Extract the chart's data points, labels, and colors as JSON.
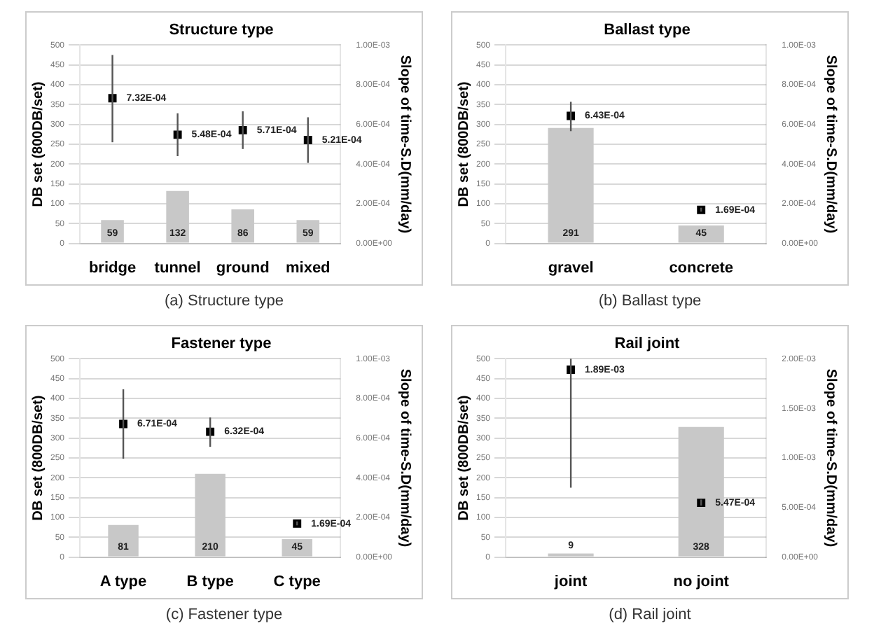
{
  "chart_data": [
    {
      "type": "bar",
      "title": "Structure type",
      "ylabel": "DB set (800DB/set)",
      "y2label": "Slope of time-S.D(mm/day)",
      "annotations": [
        "(a) Structure type"
      ],
      "categories": [
        "bridge",
        "tunnel",
        "ground",
        "mixed"
      ],
      "ylim": [
        0,
        500
      ],
      "yticks": [
        0,
        50,
        100,
        150,
        200,
        250,
        300,
        350,
        400,
        450,
        500
      ],
      "y2lim": [
        0,
        0.001
      ],
      "y2ticks": [
        {
          "value": 0,
          "label": "0.00E+00"
        },
        {
          "value": 0.0002,
          "label": "2.00E-04"
        },
        {
          "value": 0.0004,
          "label": "4.00E-04"
        },
        {
          "value": 0.0006,
          "label": "6.00E-04"
        },
        {
          "value": 0.0008,
          "label": "8.00E-04"
        },
        {
          "value": 0.001,
          "label": "1.00E-03"
        }
      ],
      "grid": "y",
      "series": [
        {
          "color": "#c8c8c8",
          "values": [
            59,
            132,
            86,
            59
          ],
          "value_labels": [
            "59",
            "132",
            "86",
            "59"
          ]
        },
        {
          "type": "scatter",
          "axis": "y2",
          "color": "#000000",
          "values": [
            0.000732,
            0.000548,
            0.000571,
            0.000521
          ],
          "errors": [
            [
              0.00051,
              0.00095
            ],
            [
              0.00044,
              0.000656
            ],
            [
              0.000476,
              0.000666
            ],
            [
              0.000406,
              0.000636
            ]
          ],
          "value_labels": [
            "7.32E-04",
            "5.48E-04",
            "5.71E-04",
            "5.21E-04"
          ]
        }
      ]
    },
    {
      "type": "bar",
      "title": "Ballast type",
      "ylabel": "DB set (800DB/set)",
      "y2label": "Slope of time-S.D(mm/day)",
      "annotations": [
        "(b) Ballast type"
      ],
      "categories": [
        "gravel",
        "concrete"
      ],
      "ylim": [
        0,
        500
      ],
      "yticks": [
        0,
        50,
        100,
        150,
        200,
        250,
        300,
        350,
        400,
        450,
        500
      ],
      "y2lim": [
        0,
        0.001
      ],
      "y2ticks": [
        {
          "value": 0,
          "label": "0.00E+00"
        },
        {
          "value": 0.0002,
          "label": "2.00E-04"
        },
        {
          "value": 0.0004,
          "label": "4.00E-04"
        },
        {
          "value": 0.0006,
          "label": "6.00E-04"
        },
        {
          "value": 0.0008,
          "label": "8.00E-04"
        },
        {
          "value": 0.001,
          "label": "1.00E-03"
        }
      ],
      "grid": "y",
      "series": [
        {
          "color": "#c8c8c8",
          "values": [
            291,
            45
          ],
          "value_labels": [
            "291",
            "45"
          ]
        },
        {
          "type": "scatter",
          "axis": "y2",
          "color": "#000000",
          "values": [
            0.000643,
            0.000169
          ],
          "errors": [
            [
              0.000566,
              0.000714
            ],
            [
              0.00016,
              0.00018
            ]
          ],
          "value_labels": [
            "6.43E-04",
            "1.69E-04"
          ]
        }
      ]
    },
    {
      "type": "bar",
      "title": "Fastener type",
      "ylabel": "DB set (800DB/set)",
      "y2label": "Slope of time-S.D(mm/day)",
      "annotations": [
        "(c) Fastener type"
      ],
      "categories": [
        "A type",
        "B type",
        "C type"
      ],
      "ylim": [
        0,
        500
      ],
      "yticks": [
        0,
        50,
        100,
        150,
        200,
        250,
        300,
        350,
        400,
        450,
        500
      ],
      "y2lim": [
        0,
        0.001
      ],
      "y2ticks": [
        {
          "value": 0,
          "label": "0.00E+00"
        },
        {
          "value": 0.0002,
          "label": "2.00E-04"
        },
        {
          "value": 0.0004,
          "label": "4.00E-04"
        },
        {
          "value": 0.0006,
          "label": "6.00E-04"
        },
        {
          "value": 0.0008,
          "label": "8.00E-04"
        },
        {
          "value": 0.001,
          "label": "1.00E-03"
        }
      ],
      "grid": "y",
      "series": [
        {
          "color": "#c8c8c8",
          "values": [
            81,
            210,
            45
          ],
          "value_labels": [
            "81",
            "210",
            "45"
          ]
        },
        {
          "type": "scatter",
          "axis": "y2",
          "color": "#000000",
          "values": [
            0.000671,
            0.000632,
            0.000169
          ],
          "errors": [
            [
              0.000496,
              0.000846
            ],
            [
              0.000556,
              0.000704
            ],
            [
              0.00016,
              0.00018
            ]
          ],
          "value_labels": [
            "6.71E-04",
            "6.32E-04",
            "1.69E-04"
          ]
        }
      ]
    },
    {
      "type": "bar",
      "title": "Rail joint",
      "ylabel": "DB set (800DB/set)",
      "y2label": "Slope of time-S.D(mm/day)",
      "annotations": [
        "(d) Rail joint"
      ],
      "categories": [
        "joint",
        "no joint"
      ],
      "ylim": [
        0,
        500
      ],
      "yticks": [
        0,
        50,
        100,
        150,
        200,
        250,
        300,
        350,
        400,
        450,
        500
      ],
      "y2lim": [
        0,
        0.002
      ],
      "y2ticks": [
        {
          "value": 0,
          "label": "0.00E+00"
        },
        {
          "value": 0.0005,
          "label": "5.00E-04"
        },
        {
          "value": 0.001,
          "label": "1.00E-03"
        },
        {
          "value": 0.0015,
          "label": "1.50E-03"
        },
        {
          "value": 0.002,
          "label": "2.00E-03"
        }
      ],
      "grid": "y",
      "series": [
        {
          "color": "#c8c8c8",
          "values": [
            9,
            328
          ],
          "value_labels": [
            "9",
            "328"
          ]
        },
        {
          "type": "scatter",
          "axis": "y2",
          "color": "#000000",
          "values": [
            0.00189,
            0.000547
          ],
          "errors": [
            [
              0.0007,
              0.002
            ],
            [
              0.00052,
              0.00058
            ]
          ],
          "value_labels": [
            "1.89E-03",
            "5.47E-04"
          ]
        }
      ]
    }
  ]
}
